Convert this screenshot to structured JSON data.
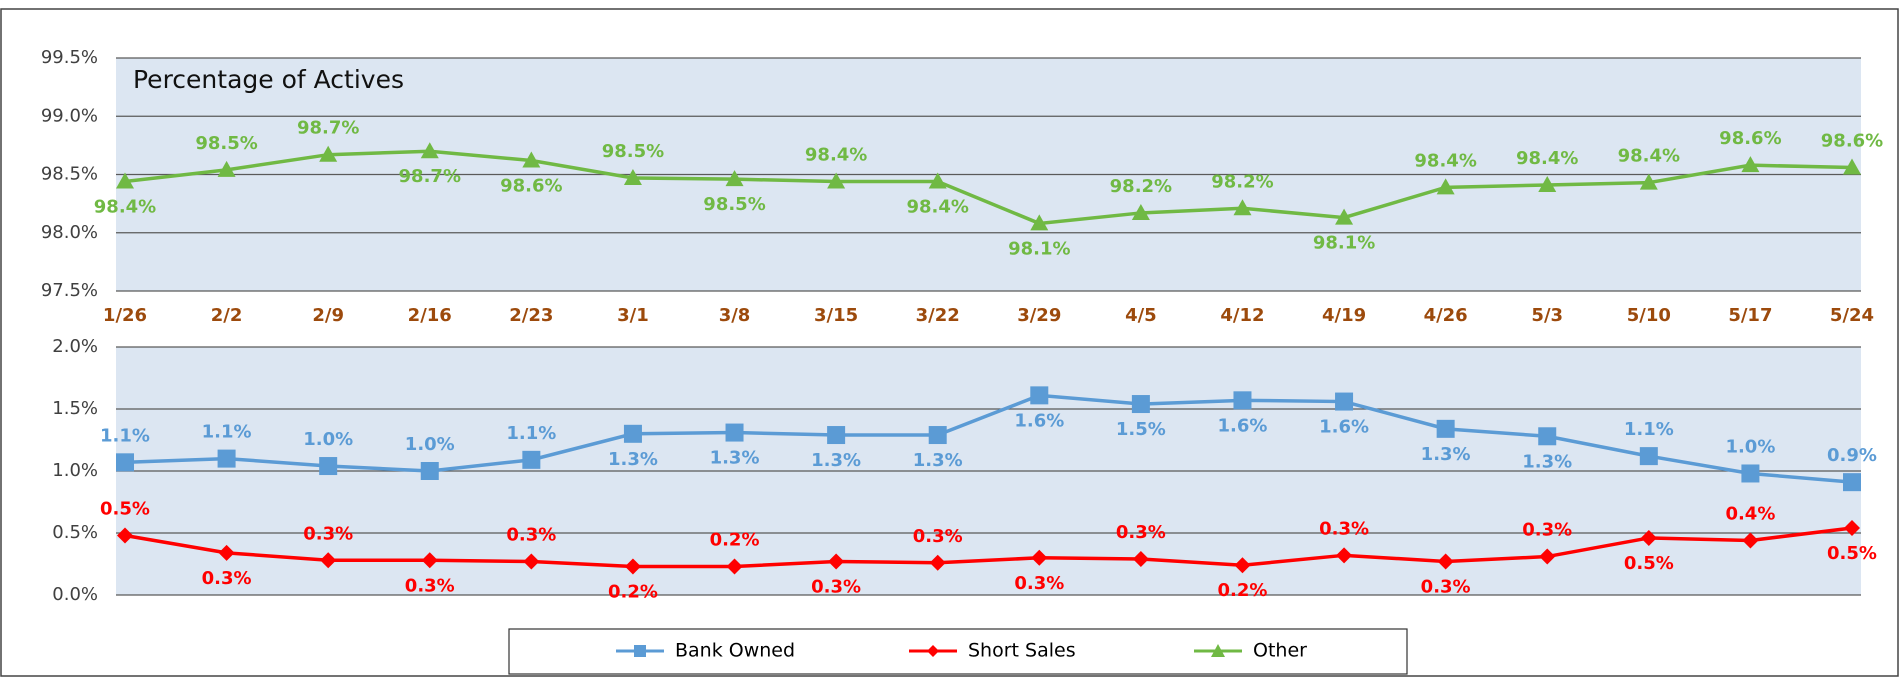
{
  "chart_data": [
    {
      "type": "line",
      "annotation": "Percentage of Actives",
      "categories": [
        "1/26",
        "2/2",
        "2/9",
        "2/16",
        "2/23",
        "3/1",
        "3/8",
        "3/15",
        "3/22",
        "3/29",
        "4/5",
        "4/12",
        "4/19",
        "4/26",
        "5/3",
        "5/10",
        "5/17",
        "5/24"
      ],
      "series": [
        {
          "name": "Other",
          "color": "#70b944",
          "marker": "triangle",
          "values": [
            98.44,
            98.54,
            98.67,
            98.7,
            98.62,
            98.47,
            98.46,
            98.44,
            98.44,
            98.08,
            98.17,
            98.21,
            98.13,
            98.39,
            98.41,
            98.43,
            98.58,
            98.56
          ],
          "value_labels": [
            "98.4%",
            "98.5%",
            "98.7%",
            "98.7%",
            "98.6%",
            "98.5%",
            "98.5%",
            "98.4%",
            "98.4%",
            "98.1%",
            "98.2%",
            "98.2%",
            "98.1%",
            "98.4%",
            "98.4%",
            "98.4%",
            "98.6%",
            "98.6%"
          ]
        }
      ],
      "ylim": [
        97.5,
        99.5
      ],
      "yticks": [
        {
          "value": 97.5,
          "label": "97.5%"
        },
        {
          "value": 98.0,
          "label": "98.0%"
        },
        {
          "value": 98.5,
          "label": "98.5%"
        },
        {
          "value": 99.0,
          "label": "99.0%"
        },
        {
          "value": 99.5,
          "label": "99.5%"
        }
      ],
      "grid": true
    },
    {
      "type": "line",
      "series": [
        {
          "name": "Bank Owned",
          "color": "#5b9bd5",
          "marker": "square",
          "values": [
            1.07,
            1.1,
            1.04,
            1.0,
            1.09,
            1.3,
            1.31,
            1.29,
            1.29,
            1.61,
            1.54,
            1.57,
            1.56,
            1.34,
            1.28,
            1.12,
            0.98,
            0.91
          ],
          "value_labels": [
            "1.1%",
            "1.1%",
            "1.0%",
            "1.0%",
            "1.1%",
            "1.3%",
            "1.3%",
            "1.3%",
            "1.3%",
            "1.6%",
            "1.5%",
            "1.6%",
            "1.6%",
            "1.3%",
            "1.3%",
            "1.1%",
            "1.0%",
            "0.9%"
          ]
        },
        {
          "name": "Short Sales",
          "color": "#ff0000",
          "marker": "diamond",
          "values": [
            0.48,
            0.34,
            0.28,
            0.28,
            0.27,
            0.23,
            0.23,
            0.27,
            0.26,
            0.3,
            0.29,
            0.24,
            0.32,
            0.27,
            0.31,
            0.46,
            0.44,
            0.54
          ],
          "value_labels": [
            "0.5%",
            "0.3%",
            "0.3%",
            "0.3%",
            "0.3%",
            "0.2%",
            "0.2%",
            "0.3%",
            "0.3%",
            "0.3%",
            "0.3%",
            "0.2%",
            "0.3%",
            "0.3%",
            "0.3%",
            "0.5%",
            "0.4%",
            "0.5%"
          ]
        }
      ],
      "ylim": [
        0,
        2.0
      ],
      "yticks": [
        {
          "value": 0,
          "label": "0.0%"
        },
        {
          "value": 0.5,
          "label": "0.5%"
        },
        {
          "value": 1.0,
          "label": "1.0%"
        },
        {
          "value": 1.5,
          "label": "1.5%"
        },
        {
          "value": 2.0,
          "label": "2.0%"
        }
      ],
      "grid": true
    }
  ]
}
